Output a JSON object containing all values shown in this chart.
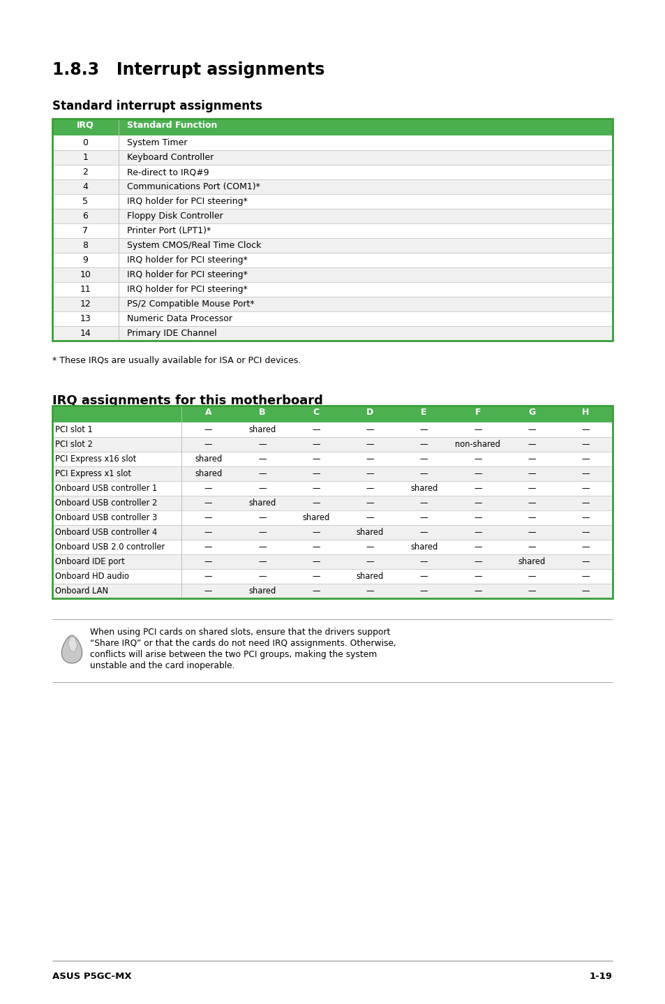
{
  "bg_color": "#ffffff",
  "header_green": "#4caf50",
  "header_text_color": "#ffffff",
  "section1_title": "1.8.3   Interrupt assignments",
  "section2_title": "Standard interrupt assignments",
  "section3_title": "IRQ assignments for this motherboard",
  "irq_table_col1_header": "IRQ",
  "irq_table_col2_header": "Standard Function",
  "irq_rows": [
    [
      "0",
      "System Timer"
    ],
    [
      "1",
      "Keyboard Controller"
    ],
    [
      "2",
      "Re-direct to IRQ#9"
    ],
    [
      "4",
      "Communications Port (COM1)*"
    ],
    [
      "5",
      "IRQ holder for PCI steering*"
    ],
    [
      "6",
      "Floppy Disk Controller"
    ],
    [
      "7",
      "Printer Port (LPT1)*"
    ],
    [
      "8",
      "System CMOS/Real Time Clock"
    ],
    [
      "9",
      "IRQ holder for PCI steering*"
    ],
    [
      "10",
      "IRQ holder for PCI steering*"
    ],
    [
      "11",
      "IRQ holder for PCI steering*"
    ],
    [
      "12",
      "PS/2 Compatible Mouse Port*"
    ],
    [
      "13",
      "Numeric Data Processor"
    ],
    [
      "14",
      "Primary IDE Channel"
    ]
  ],
  "footnote": "* These IRQs are usually available for ISA or PCI devices.",
  "mb_table_headers": [
    "",
    "A",
    "B",
    "C",
    "D",
    "E",
    "F",
    "G",
    "H"
  ],
  "mb_rows": [
    [
      "PCI slot 1",
      "—",
      "shared",
      "—",
      "—",
      "—",
      "—",
      "—",
      "—"
    ],
    [
      "PCI slot 2",
      "—",
      "—",
      "—",
      "—",
      "—",
      "non-shared",
      "—",
      "—"
    ],
    [
      "PCI Express x16 slot",
      "shared",
      "—",
      "—",
      "—",
      "—",
      "—",
      "—",
      "—"
    ],
    [
      "PCI Express x1 slot",
      "shared",
      "—",
      "—",
      "—",
      "—",
      "—",
      "—",
      "—"
    ],
    [
      "Onboard USB controller 1",
      "—",
      "—",
      "—",
      "—",
      "shared",
      "—",
      "—",
      "—"
    ],
    [
      "Onboard USB controller 2",
      "—",
      "shared",
      "—",
      "—",
      "—",
      "—",
      "—",
      "—"
    ],
    [
      "Onboard USB controller 3",
      "—",
      "—",
      "shared",
      "—",
      "—",
      "—",
      "—",
      "—"
    ],
    [
      "Onboard USB controller 4",
      "—",
      "—",
      "—",
      "shared",
      "—",
      "—",
      "—",
      "—"
    ],
    [
      "Onboard USB 2.0 controller",
      "—",
      "—",
      "—",
      "—",
      "shared",
      "—",
      "—",
      "—"
    ],
    [
      "Onboard IDE port",
      "—",
      "—",
      "—",
      "—",
      "—",
      "—",
      "shared",
      "—"
    ],
    [
      "Onboard HD audio",
      "—",
      "—",
      "—",
      "shared",
      "—",
      "—",
      "—",
      "—"
    ],
    [
      "Onboard LAN",
      "—",
      "shared",
      "—",
      "—",
      "—",
      "—",
      "—",
      "—"
    ]
  ],
  "note_line1": "When using PCI cards on shared slots, ensure that the drivers support",
  "note_line2": "“Share IRQ” or that the cards do not need IRQ assignments. Otherwise,",
  "note_line3": "conflicts will arise between the two PCI groups, making the system",
  "note_line4": "unstable and the card inoperable.",
  "footer_left": "ASUS P5GC-MX",
  "footer_right": "1-19",
  "green_border": "#3a9e3a",
  "row_alt_color": "#f0f0f0",
  "row_white": "#ffffff"
}
